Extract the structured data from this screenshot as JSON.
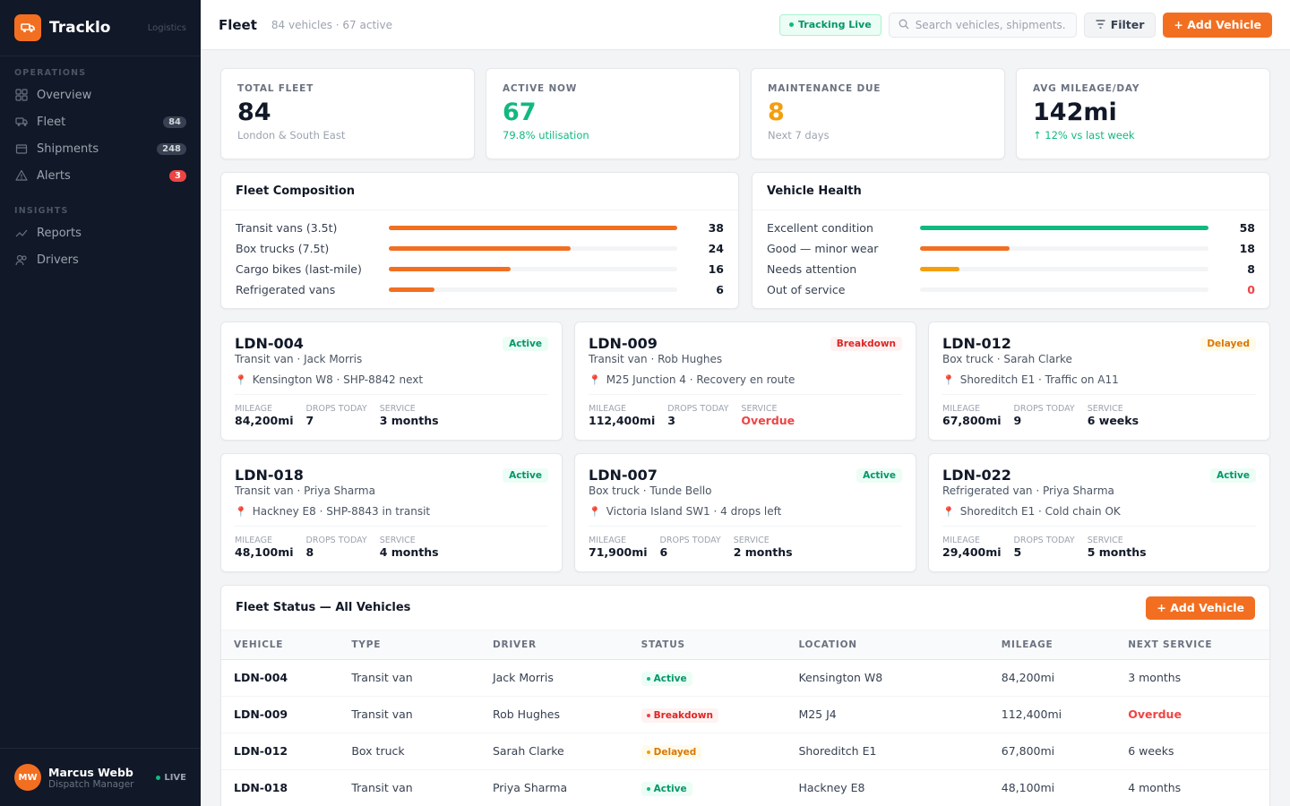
{
  "brand": {
    "name": "Tracklo",
    "sub": "Logistics"
  },
  "sidebar": {
    "sections": [
      {
        "label": "OPERATIONS",
        "items": [
          {
            "label": "Overview",
            "icon": "grid-icon",
            "badge": ""
          },
          {
            "label": "Fleet",
            "icon": "truck-icon",
            "badge": "84"
          },
          {
            "label": "Shipments",
            "icon": "box-icon",
            "badge": "248"
          },
          {
            "label": "Alerts",
            "icon": "warning-icon",
            "badge": "3"
          }
        ]
      },
      {
        "label": "INSIGHTS",
        "items": [
          {
            "label": "Reports",
            "icon": "chart-icon",
            "badge": ""
          },
          {
            "label": "Drivers",
            "icon": "users-icon",
            "badge": ""
          }
        ]
      }
    ]
  },
  "user": {
    "initials": "MW",
    "name": "Marcus Webb",
    "role": "Dispatch Manager",
    "status": "LIVE"
  },
  "topbar": {
    "title": "Fleet",
    "subtitle": "84 vehicles · 67 active",
    "tracking": "Tracking Live",
    "search_placeholder": "Search vehicles, shipments...",
    "filter_label": "Filter",
    "add_label": "+ Add Vehicle"
  },
  "stats": [
    {
      "label": "TOTAL FLEET",
      "value": "84",
      "sub": "London & South East",
      "color": "#111827",
      "sub_color": "#9ca3af"
    },
    {
      "label": "ACTIVE NOW",
      "value": "67",
      "sub": "79.8% utilisation",
      "color": "#10b981",
      "sub_color": "#10b981"
    },
    {
      "label": "MAINTENANCE DUE",
      "value": "8",
      "sub": "Next 7 days",
      "color": "#f59e0b",
      "sub_color": "#9ca3af"
    },
    {
      "label": "AVG MILEAGE/DAY",
      "value": "142mi",
      "sub": "↑ 12% vs last week",
      "color": "#111827",
      "sub_color": "#10b981"
    }
  ],
  "composition": {
    "title": "Fleet Composition",
    "max": 38,
    "rows": [
      {
        "label": "Transit vans (3.5t)",
        "value": 38,
        "color": "#f26f21"
      },
      {
        "label": "Box trucks (7.5t)",
        "value": 24,
        "color": "#f26f21"
      },
      {
        "label": "Cargo bikes (last-mile)",
        "value": 16,
        "color": "#f26f21"
      },
      {
        "label": "Refrigerated vans",
        "value": 6,
        "color": "#f26f21"
      }
    ]
  },
  "health": {
    "title": "Vehicle Health",
    "max": 58,
    "rows": [
      {
        "label": "Excellent condition",
        "value": 58,
        "color": "#10b981"
      },
      {
        "label": "Good — minor wear",
        "value": 18,
        "color": "#f26f21"
      },
      {
        "label": "Needs attention",
        "value": 8,
        "color": "#f59e0b"
      },
      {
        "label": "Out of service",
        "value": 0,
        "color": "#ef4444",
        "value_color": "#ef4444"
      }
    ]
  },
  "vehicles": [
    {
      "id": "LDN-004",
      "status": "Active",
      "status_class": "st-active",
      "meta": "Transit van · Jack Morris",
      "location": "Kensington W8 · SHP-8842 next",
      "mileage": "84,200mi",
      "drops": "7",
      "service": "3 months",
      "overdue": false
    },
    {
      "id": "LDN-009",
      "status": "Breakdown",
      "status_class": "st-breakdown",
      "meta": "Transit van · Rob Hughes",
      "location": "M25 Junction 4 · Recovery en route",
      "mileage": "112,400mi",
      "drops": "3",
      "service": "Overdue",
      "overdue": true
    },
    {
      "id": "LDN-012",
      "status": "Delayed",
      "status_class": "st-delayed",
      "meta": "Box truck · Sarah Clarke",
      "location": "Shoreditch E1 · Traffic on A11",
      "mileage": "67,800mi",
      "drops": "9",
      "service": "6 weeks",
      "overdue": false
    },
    {
      "id": "LDN-018",
      "status": "Active",
      "status_class": "st-active",
      "meta": "Transit van · Priya Sharma",
      "location": "Hackney E8 · SHP-8843 in transit",
      "mileage": "48,100mi",
      "drops": "8",
      "service": "4 months",
      "overdue": false
    },
    {
      "id": "LDN-007",
      "status": "Active",
      "status_class": "st-active",
      "meta": "Box truck · Tunde Bello",
      "location": "Victoria Island SW1 · 4 drops left",
      "mileage": "71,900mi",
      "drops": "6",
      "service": "2 months",
      "overdue": false
    },
    {
      "id": "LDN-022",
      "status": "Active",
      "status_class": "st-active",
      "meta": "Refrigerated van · Priya Sharma",
      "location": "Shoreditch E1 · Cold chain OK",
      "mileage": "29,400mi",
      "drops": "5",
      "service": "5 months",
      "overdue": false
    }
  ],
  "vehicle_labels": {
    "mileage": "MILEAGE",
    "drops": "DROPS TODAY",
    "service": "SERVICE"
  },
  "table": {
    "title": "Fleet Status — All Vehicles",
    "add_label": "+ Add Vehicle",
    "columns": [
      "VEHICLE",
      "TYPE",
      "DRIVER",
      "STATUS",
      "LOCATION",
      "MILEAGE",
      "NEXT SERVICE"
    ],
    "rows": [
      {
        "vehicle": "LDN-004",
        "type": "Transit van",
        "driver": "Jack Morris",
        "status": "Active",
        "status_class": "st-active",
        "location": "Kensington W8",
        "mileage": "84,200mi",
        "service": "3 months",
        "overdue": false
      },
      {
        "vehicle": "LDN-009",
        "type": "Transit van",
        "driver": "Rob Hughes",
        "status": "Breakdown",
        "status_class": "st-breakdown",
        "location": "M25 J4",
        "mileage": "112,400mi",
        "service": "Overdue",
        "overdue": true
      },
      {
        "vehicle": "LDN-012",
        "type": "Box truck",
        "driver": "Sarah Clarke",
        "status": "Delayed",
        "status_class": "st-delayed",
        "location": "Shoreditch E1",
        "mileage": "67,800mi",
        "service": "6 weeks",
        "overdue": false
      },
      {
        "vehicle": "LDN-018",
        "type": "Transit van",
        "driver": "Priya Sharma",
        "status": "Active",
        "status_class": "st-active",
        "location": "Hackney E8",
        "mileage": "48,100mi",
        "service": "4 months",
        "overdue": false
      }
    ]
  }
}
